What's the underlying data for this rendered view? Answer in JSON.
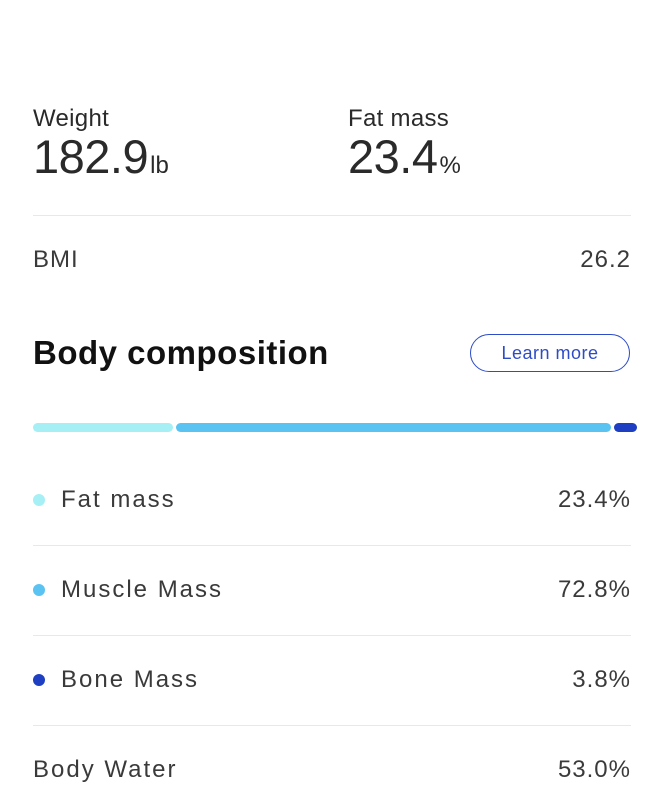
{
  "summary": {
    "weight": {
      "label": "Weight",
      "value": "182.9",
      "unit": "lb"
    },
    "fat_mass": {
      "label": "Fat mass",
      "value": "23.4",
      "unit": "%"
    }
  },
  "bmi": {
    "label": "BMI",
    "value": "26.2"
  },
  "body_composition": {
    "title": "Body composition",
    "learn_more_label": "Learn more",
    "items": [
      {
        "label": "Fat mass",
        "value": "23.4%",
        "percent": 23.4,
        "color": "#a6f0f5"
      },
      {
        "label": "Muscle Mass",
        "value": "72.8%",
        "percent": 72.8,
        "color": "#5bc3f1"
      },
      {
        "label": "Bone Mass",
        "value": "3.8%",
        "percent": 3.8,
        "color": "#1f3fc2"
      }
    ],
    "body_water": {
      "label": "Body Water",
      "value": "53.0%"
    }
  },
  "colors": {
    "accent": "#2e4cc7",
    "divider": "#e8e8e8"
  }
}
